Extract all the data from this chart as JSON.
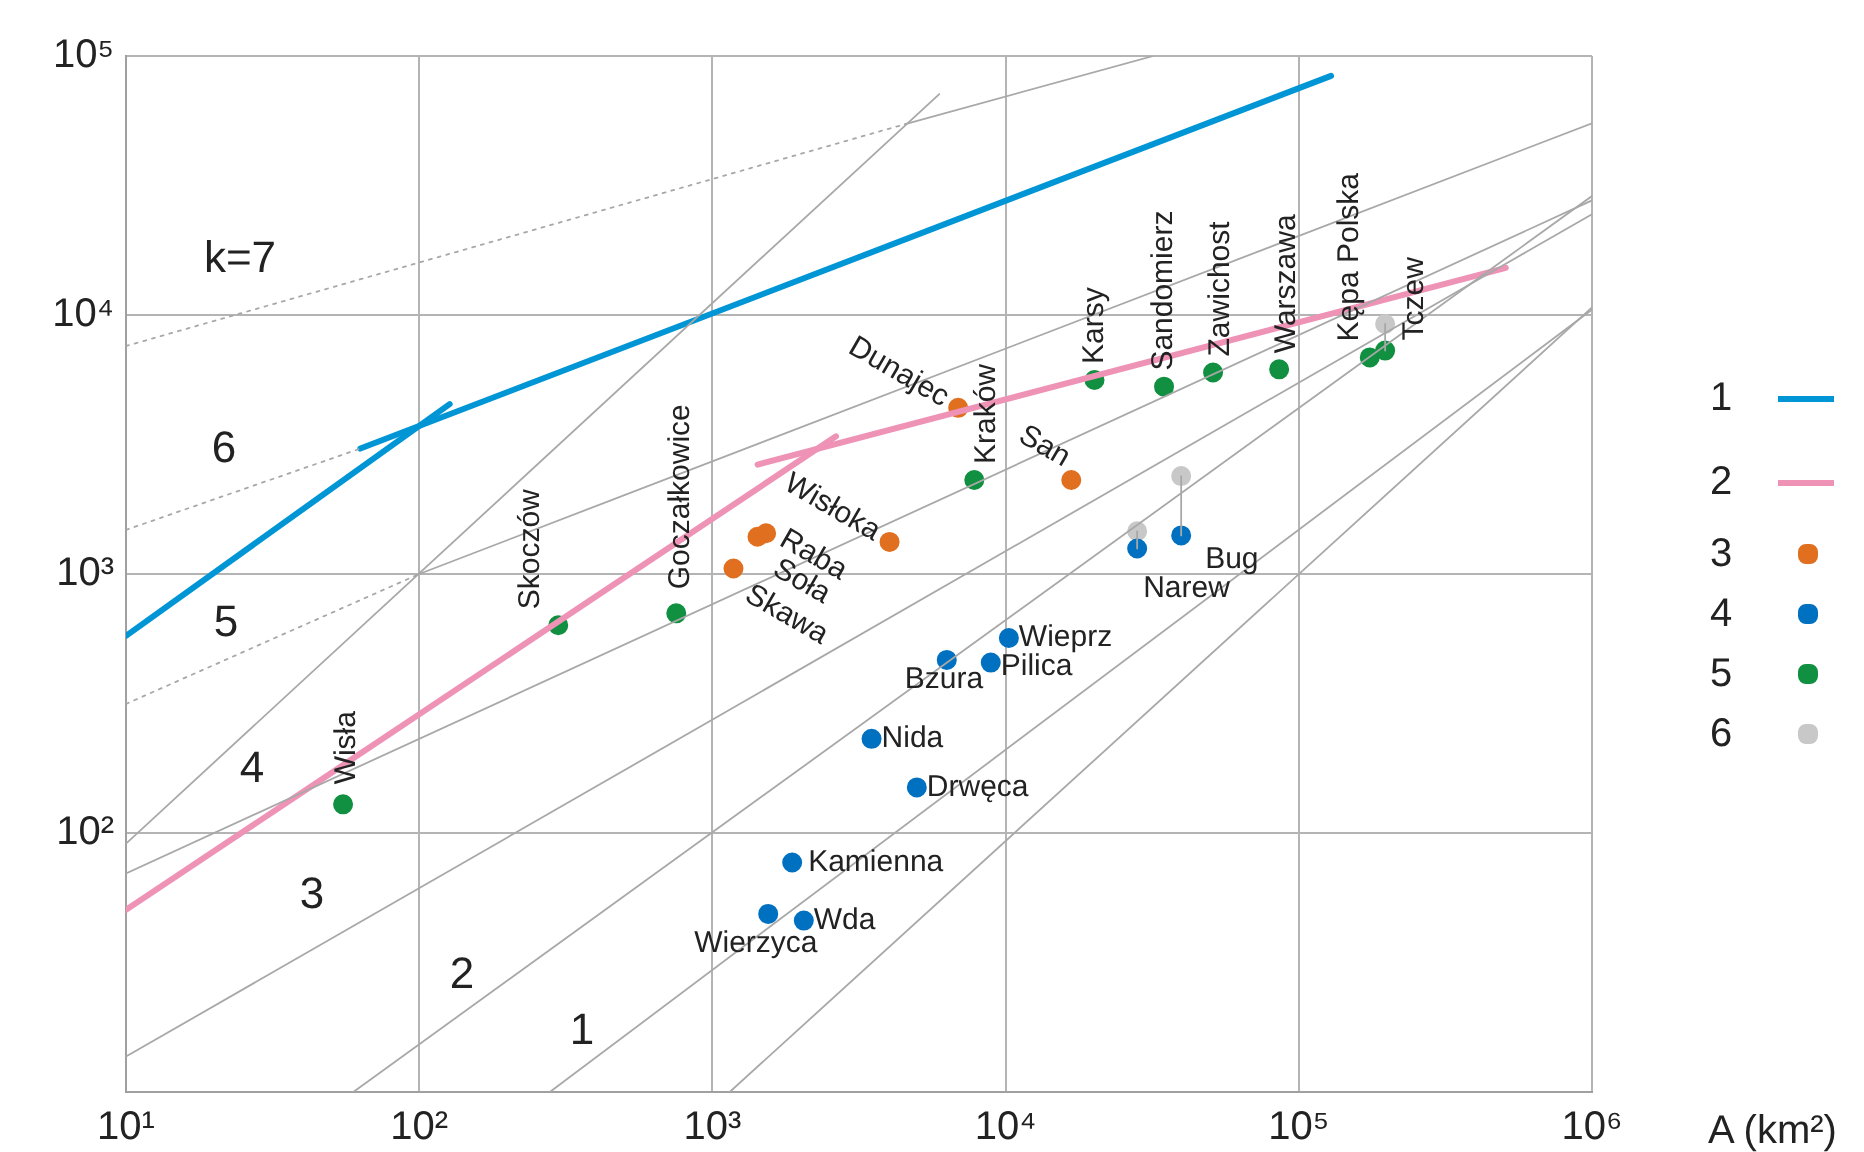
{
  "chart_data": {
    "type": "scatter",
    "xlabel": "A (km²)",
    "log": "xy",
    "grid": true,
    "legend": "right",
    "xlim": [
      10,
      1000000
    ],
    "xticks": [
      {
        "value": 10,
        "label": "10¹"
      },
      {
        "value": 100,
        "label": "10²"
      },
      {
        "value": 1000,
        "label": "10³"
      },
      {
        "value": 10000,
        "label": "10⁴"
      },
      {
        "value": 100000,
        "label": "10⁵"
      },
      {
        "value": 1000000,
        "label": "10⁶"
      }
    ],
    "ylim": [
      10,
      100000
    ],
    "yticks": [
      {
        "value": 10,
        "label": null
      },
      {
        "value": 100,
        "label": "10²"
      },
      {
        "value": 1000,
        "label": "10³"
      },
      {
        "value": 10000,
        "label": "10⁴"
      },
      {
        "value": 100000,
        "label": "10⁵"
      }
    ],
    "series": [
      {
        "type": "line",
        "color": "#a8a8a8",
        "line_style": "dotted",
        "marker": "none",
        "x": [
          10,
          4550
        ],
        "values": [
          7590,
          54600
        ]
      },
      {
        "type": "line",
        "color": "#a8a8a8",
        "line_style": "solid",
        "marker": "none",
        "x": [
          4550,
          31900
        ],
        "values": [
          54600,
          100000
        ]
      },
      {
        "type": "line",
        "color": "#a8a8a8",
        "line_style": "dotted",
        "marker": "none",
        "x": [
          10,
          63
        ],
        "values": [
          1480,
          3050
        ]
      },
      {
        "type": "line",
        "color": "#a8a8a8",
        "line_style": "dotted",
        "marker": "none",
        "x": [
          10,
          100
        ],
        "values": [
          315,
          1000
        ]
      },
      {
        "type": "line",
        "color": "#a8a8a8",
        "line_style": "solid",
        "marker": "none",
        "x": [
          100,
          1000000
        ],
        "values": [
          1000,
          55000
        ]
      },
      {
        "type": "line",
        "color": "#a8a8a8",
        "line_style": "solid",
        "marker": "none",
        "x": [
          10,
          5940
        ],
        "values": [
          91,
          71300
        ]
      },
      {
        "type": "line",
        "color": "#a8a8a8",
        "line_style": "solid",
        "marker": "none",
        "x": [
          10,
          1000000
        ],
        "values": [
          69.8,
          27700
        ]
      },
      {
        "type": "line",
        "color": "#a8a8a8",
        "line_style": "solid",
        "marker": "none",
        "x": [
          10,
          1000000
        ],
        "values": [
          13.7,
          24500
        ]
      },
      {
        "type": "line",
        "color": "#a8a8a8",
        "line_style": "solid",
        "marker": "none",
        "x": [
          59.6,
          1000000
        ],
        "values": [
          10,
          28800
        ]
      },
      {
        "type": "line",
        "color": "#a8a8a8",
        "line_style": "solid",
        "marker": "none",
        "x": [
          279,
          1000000
        ],
        "values": [
          10,
          10500
        ]
      },
      {
        "type": "line",
        "color": "#a8a8a8",
        "line_style": "solid",
        "marker": "none",
        "x": [
          1146,
          1000000
        ],
        "values": [
          10,
          10700
        ]
      },
      {
        "type": "line",
        "color": "#a8a8a8",
        "line_style": "solid",
        "marker": "none",
        "x": [
          28100,
          28100
        ],
        "values": [
          1254,
          1462
        ]
      },
      {
        "type": "line",
        "color": "#a8a8a8",
        "line_style": "solid",
        "marker": "none",
        "x": [
          39700,
          39700
        ],
        "values": [
          1409,
          2388
        ]
      },
      {
        "type": "line",
        "color": "#a8a8a8",
        "line_style": "solid",
        "marker": "none",
        "x": [
          197000,
          197000
        ],
        "values": [
          7290,
          9230
        ]
      },
      {
        "name": "1",
        "type": "line",
        "color": "#0096d6",
        "line_style": "solid",
        "marker": "none",
        "x": [
          10,
          127
        ],
        "values": [
          577,
          4530
        ]
      },
      {
        "type": "line",
        "color": "#0096d6",
        "line_style": "solid",
        "marker": "none",
        "x": [
          63,
          128800
        ],
        "values": [
          3050,
          83800
        ]
      },
      {
        "name": "2",
        "type": "line",
        "color": "#ee92b6",
        "line_style": "solid",
        "marker": "none",
        "x": [
          10,
          2640
        ],
        "values": [
          50.5,
          3400
        ]
      },
      {
        "type": "line",
        "color": "#ee92b6",
        "line_style": "solid",
        "marker": "none",
        "x": [
          1426,
          508000
        ],
        "values": [
          2645,
          15200
        ]
      },
      {
        "name": "3",
        "type": "scatter",
        "color": "#e07020",
        "marker": "circle",
        "x": [
          4020,
          1525,
          1425,
          1180,
          6890,
          16750
        ],
        "values": [
          1330,
          1436,
          1393,
          1050,
          4380,
          2306
        ]
      },
      {
        "name": "4",
        "type": "scatter",
        "color": "#0070c0",
        "marker": "circle",
        "x": [
          39700,
          28100,
          10260,
          8900,
          6300,
          3490,
          4980,
          1871,
          2050,
          1550
        ],
        "values": [
          1409,
          1254,
          566,
          455,
          466,
          231,
          150,
          76.9,
          45.9,
          48.7
        ]
      },
      {
        "name": "5",
        "type": "scatter",
        "color": "#109040",
        "marker": "circle",
        "x": [
          55,
          298,
          753,
          7820,
          20100,
          34700,
          51000,
          85700,
          174600,
          197000
        ],
        "values": [
          129,
          634,
          705,
          2306,
          5610,
          5290,
          6000,
          6170,
          6860,
          7290
        ]
      },
      {
        "name": "6",
        "type": "scatter",
        "color": "#c8c8c8",
        "marker": "circle",
        "x": [
          28100,
          39700,
          197000
        ],
        "values": [
          1462,
          2388,
          9230
        ]
      }
    ],
    "annotations": [
      "k=7",
      "6",
      "5",
      "4",
      "3",
      "2",
      "1",
      {
        "text": "Wisła",
        "x": 55,
        "y": 129
      },
      {
        "text": "Skoczów",
        "x": 298,
        "y": 634
      },
      {
        "text": "Goczałkowice",
        "x": 753,
        "y": 705
      },
      {
        "text": "Kraków",
        "x": 7820,
        "y": 2306
      },
      {
        "text": "Karsy",
        "x": 20100,
        "y": 5610
      },
      {
        "text": "Sandomierz",
        "x": 34700,
        "y": 5290
      },
      {
        "text": "Zawichost",
        "x": 51000,
        "y": 6000
      },
      {
        "text": "Warszawa",
        "x": 85700,
        "y": 6170
      },
      {
        "text": "Kępa Polska",
        "x": 174600,
        "y": 6860
      },
      {
        "text": "Tczew",
        "x": 197000,
        "y": 7290
      },
      {
        "text": "Dunajec",
        "x": 6890,
        "y": 4380
      },
      {
        "text": "San",
        "x": 16750,
        "y": 2306
      },
      {
        "text": "Wisłoka",
        "x": 4020,
        "y": 1330
      },
      {
        "text": "Raba",
        "x": 1525,
        "y": 1436
      },
      {
        "text": "Soła",
        "x": 1425,
        "y": 1393
      },
      {
        "text": "Skawa",
        "x": 1180,
        "y": 1050
      },
      {
        "text": "Bug",
        "x": 39700,
        "y": 1409
      },
      {
        "text": "Narew",
        "x": 28100,
        "y": 1254
      },
      {
        "text": "Wieprz",
        "x": 10260,
        "y": 566
      },
      {
        "text": "Pilica",
        "x": 8900,
        "y": 455
      },
      {
        "text": "Bzura",
        "x": 6300,
        "y": 466
      },
      {
        "text": "Nida",
        "x": 3490,
        "y": 231
      },
      {
        "text": "Drwęca",
        "x": 4980,
        "y": 150
      },
      {
        "text": "Kamienna",
        "x": 1871,
        "y": 76.9
      },
      {
        "text": "Wda",
        "x": 2050,
        "y": 45.9
      },
      {
        "text": "Wierzyca",
        "x": 1550,
        "y": 48.7
      }
    ]
  }
}
